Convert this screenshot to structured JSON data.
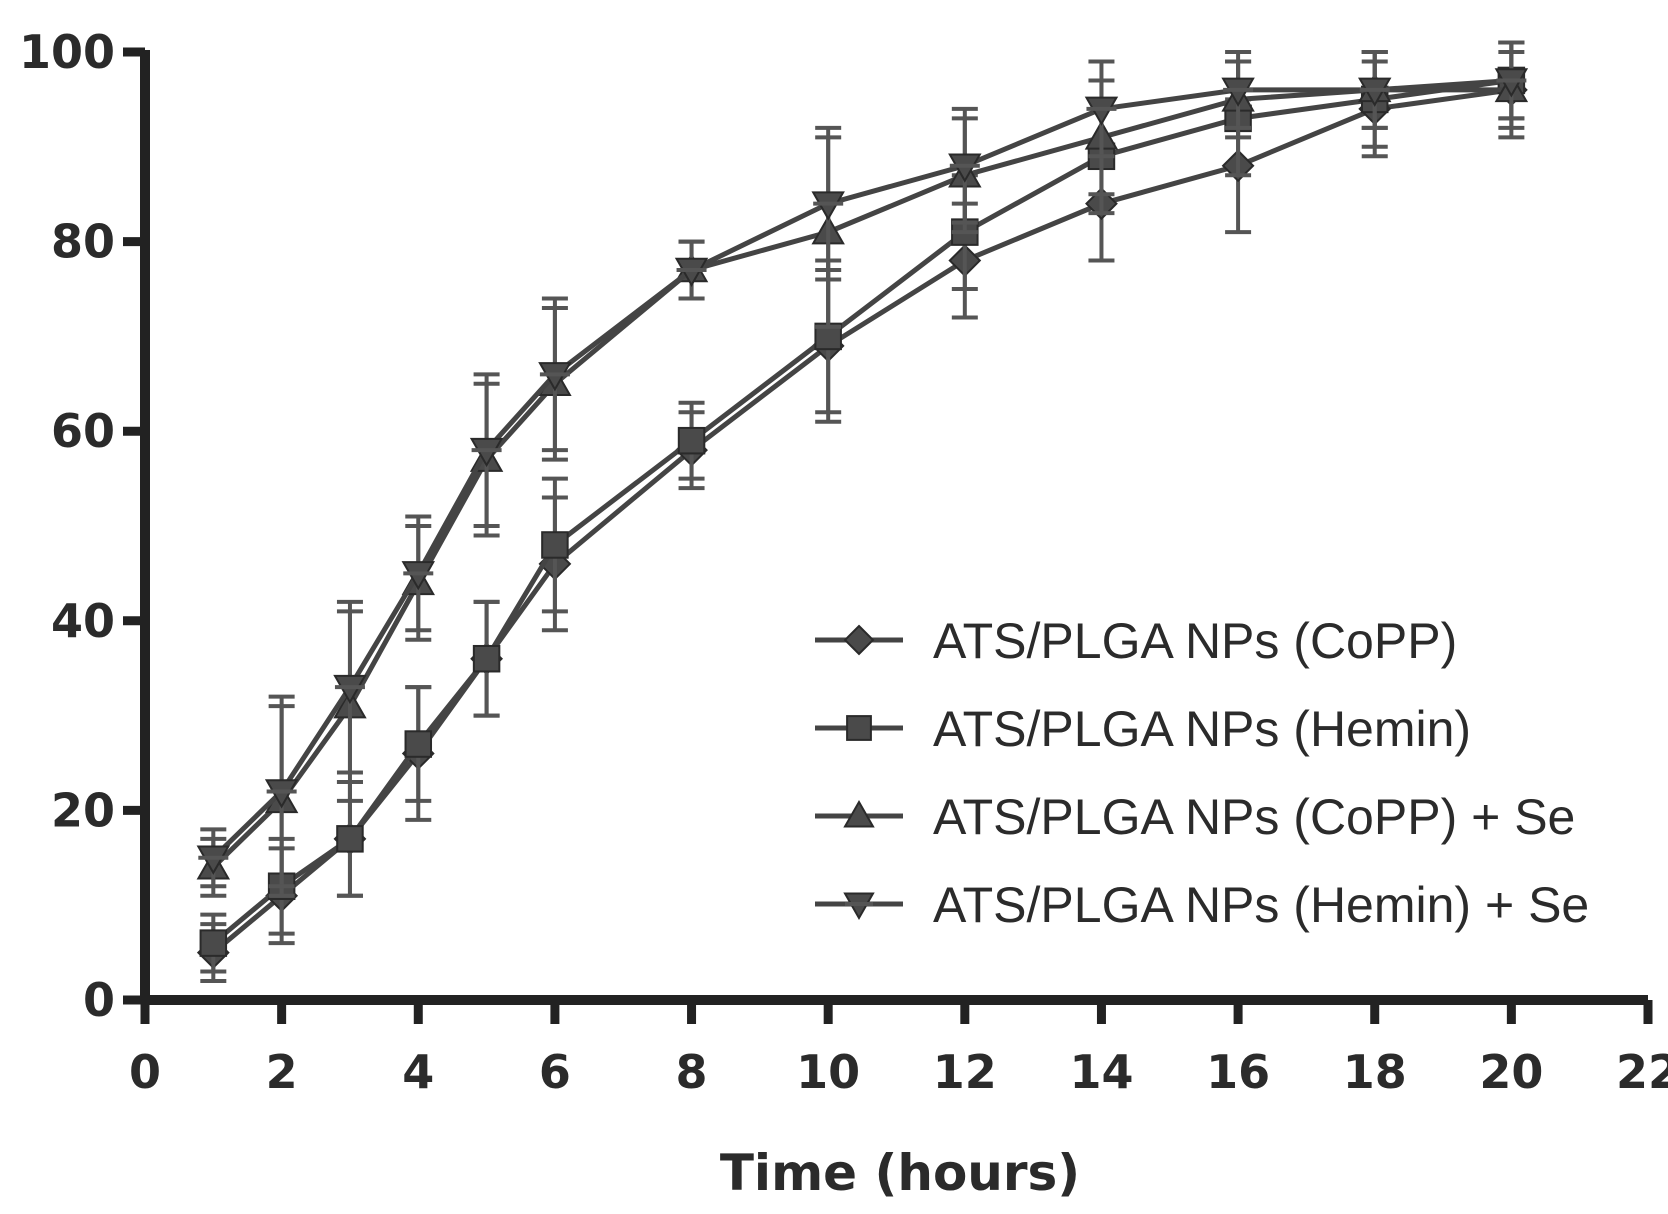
{
  "chart_data": {
    "type": "line",
    "title": "",
    "xlabel": "Time (hours)",
    "ylabel": "",
    "xlim": [
      0,
      22
    ],
    "ylim": [
      0,
      100
    ],
    "x_ticks": [
      0,
      2,
      4,
      6,
      8,
      10,
      12,
      14,
      16,
      18,
      20,
      22
    ],
    "x_tick_labels": [
      "0",
      "2",
      "4",
      "6",
      "8",
      "10",
      "12",
      "14",
      "16",
      "18",
      "20",
      "22"
    ],
    "y_ticks": [
      0,
      20,
      40,
      60,
      80,
      100
    ],
    "y_tick_labels": [
      "0",
      "20",
      "40",
      "60",
      "80",
      "100"
    ],
    "grid": false,
    "legend_position": "bottom-right",
    "x": [
      1,
      2,
      3,
      4,
      5,
      6,
      8,
      10,
      12,
      14,
      16,
      18,
      20
    ],
    "series": [
      {
        "name": "ATS/PLGA NPs (CoPP)",
        "marker": "diamond",
        "values": [
          5,
          11,
          17,
          26,
          36,
          46,
          58,
          69,
          78,
          84,
          88,
          94,
          96
        ],
        "errors": [
          3,
          5,
          6,
          7,
          6,
          7,
          4,
          8,
          6,
          6,
          7,
          5,
          5
        ]
      },
      {
        "name": "ATS/PLGA NPs (Hemin)",
        "marker": "square",
        "values": [
          6,
          12,
          17,
          27,
          36,
          48,
          59,
          70,
          81,
          89,
          93,
          95,
          97
        ],
        "errors": [
          3,
          5,
          6,
          6,
          6,
          7,
          4,
          8,
          6,
          6,
          6,
          5,
          4
        ]
      },
      {
        "name": "ATS/PLGA NPs (CoPP) + Se",
        "marker": "triangle",
        "values": [
          14,
          21,
          31,
          44,
          57,
          65,
          77,
          81,
          87,
          91,
          95,
          96,
          96
        ],
        "errors": [
          3,
          10,
          10,
          6,
          8,
          8,
          3,
          10,
          6,
          6,
          4,
          4,
          4
        ]
      },
      {
        "name": "ATS/PLGA NPs (Hemin) + Se",
        "marker": "star",
        "values": [
          15,
          22,
          33,
          45,
          58,
          66,
          77,
          84,
          88,
          94,
          96,
          96,
          97
        ],
        "errors": [
          3,
          10,
          9,
          6,
          8,
          8,
          3,
          8,
          6,
          5,
          4,
          4,
          4
        ]
      }
    ]
  }
}
